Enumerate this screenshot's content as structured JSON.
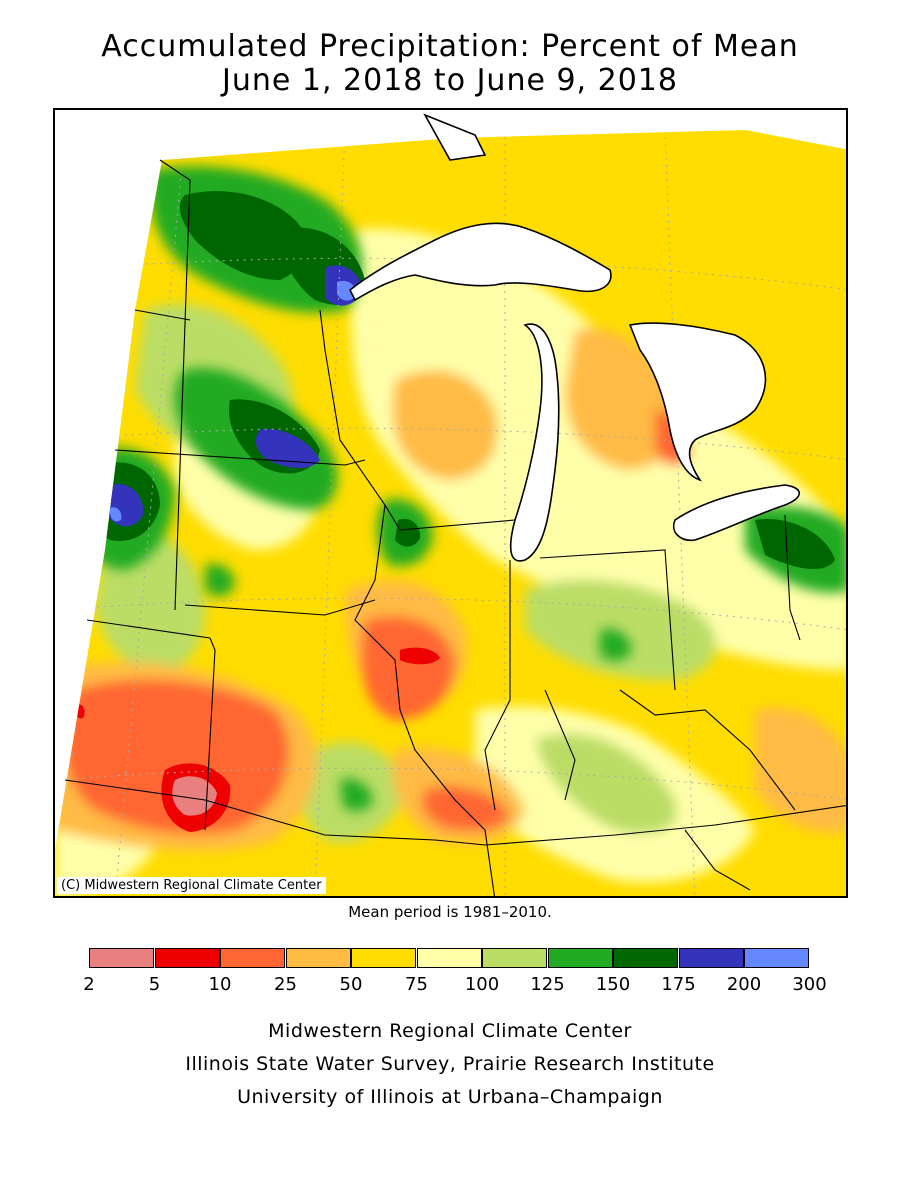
{
  "title": {
    "line1": "Accumulated Precipitation: Percent of Mean",
    "line2": "June 1, 2018 to June 9, 2018"
  },
  "copyright": "(C) Midwestern Regional Climate Center",
  "mean_period": "Mean period is 1981–2010.",
  "legend": {
    "ticks": [
      "2",
      "5",
      "10",
      "25",
      "50",
      "75",
      "100",
      "125",
      "150",
      "175",
      "200",
      "300"
    ],
    "colors": [
      "#e88080",
      "#ee0000",
      "#ff6633",
      "#ffbb44",
      "#ffdd00",
      "#ffffaa",
      "#bbdd66",
      "#22aa22",
      "#006600",
      "#3333bb",
      "#6688ff"
    ]
  },
  "credits": [
    "Midwestern Regional Climate Center",
    "Illinois State Water Survey, Prairie Research Institute",
    "University of Illinois at Urbana–Champaign"
  ]
}
